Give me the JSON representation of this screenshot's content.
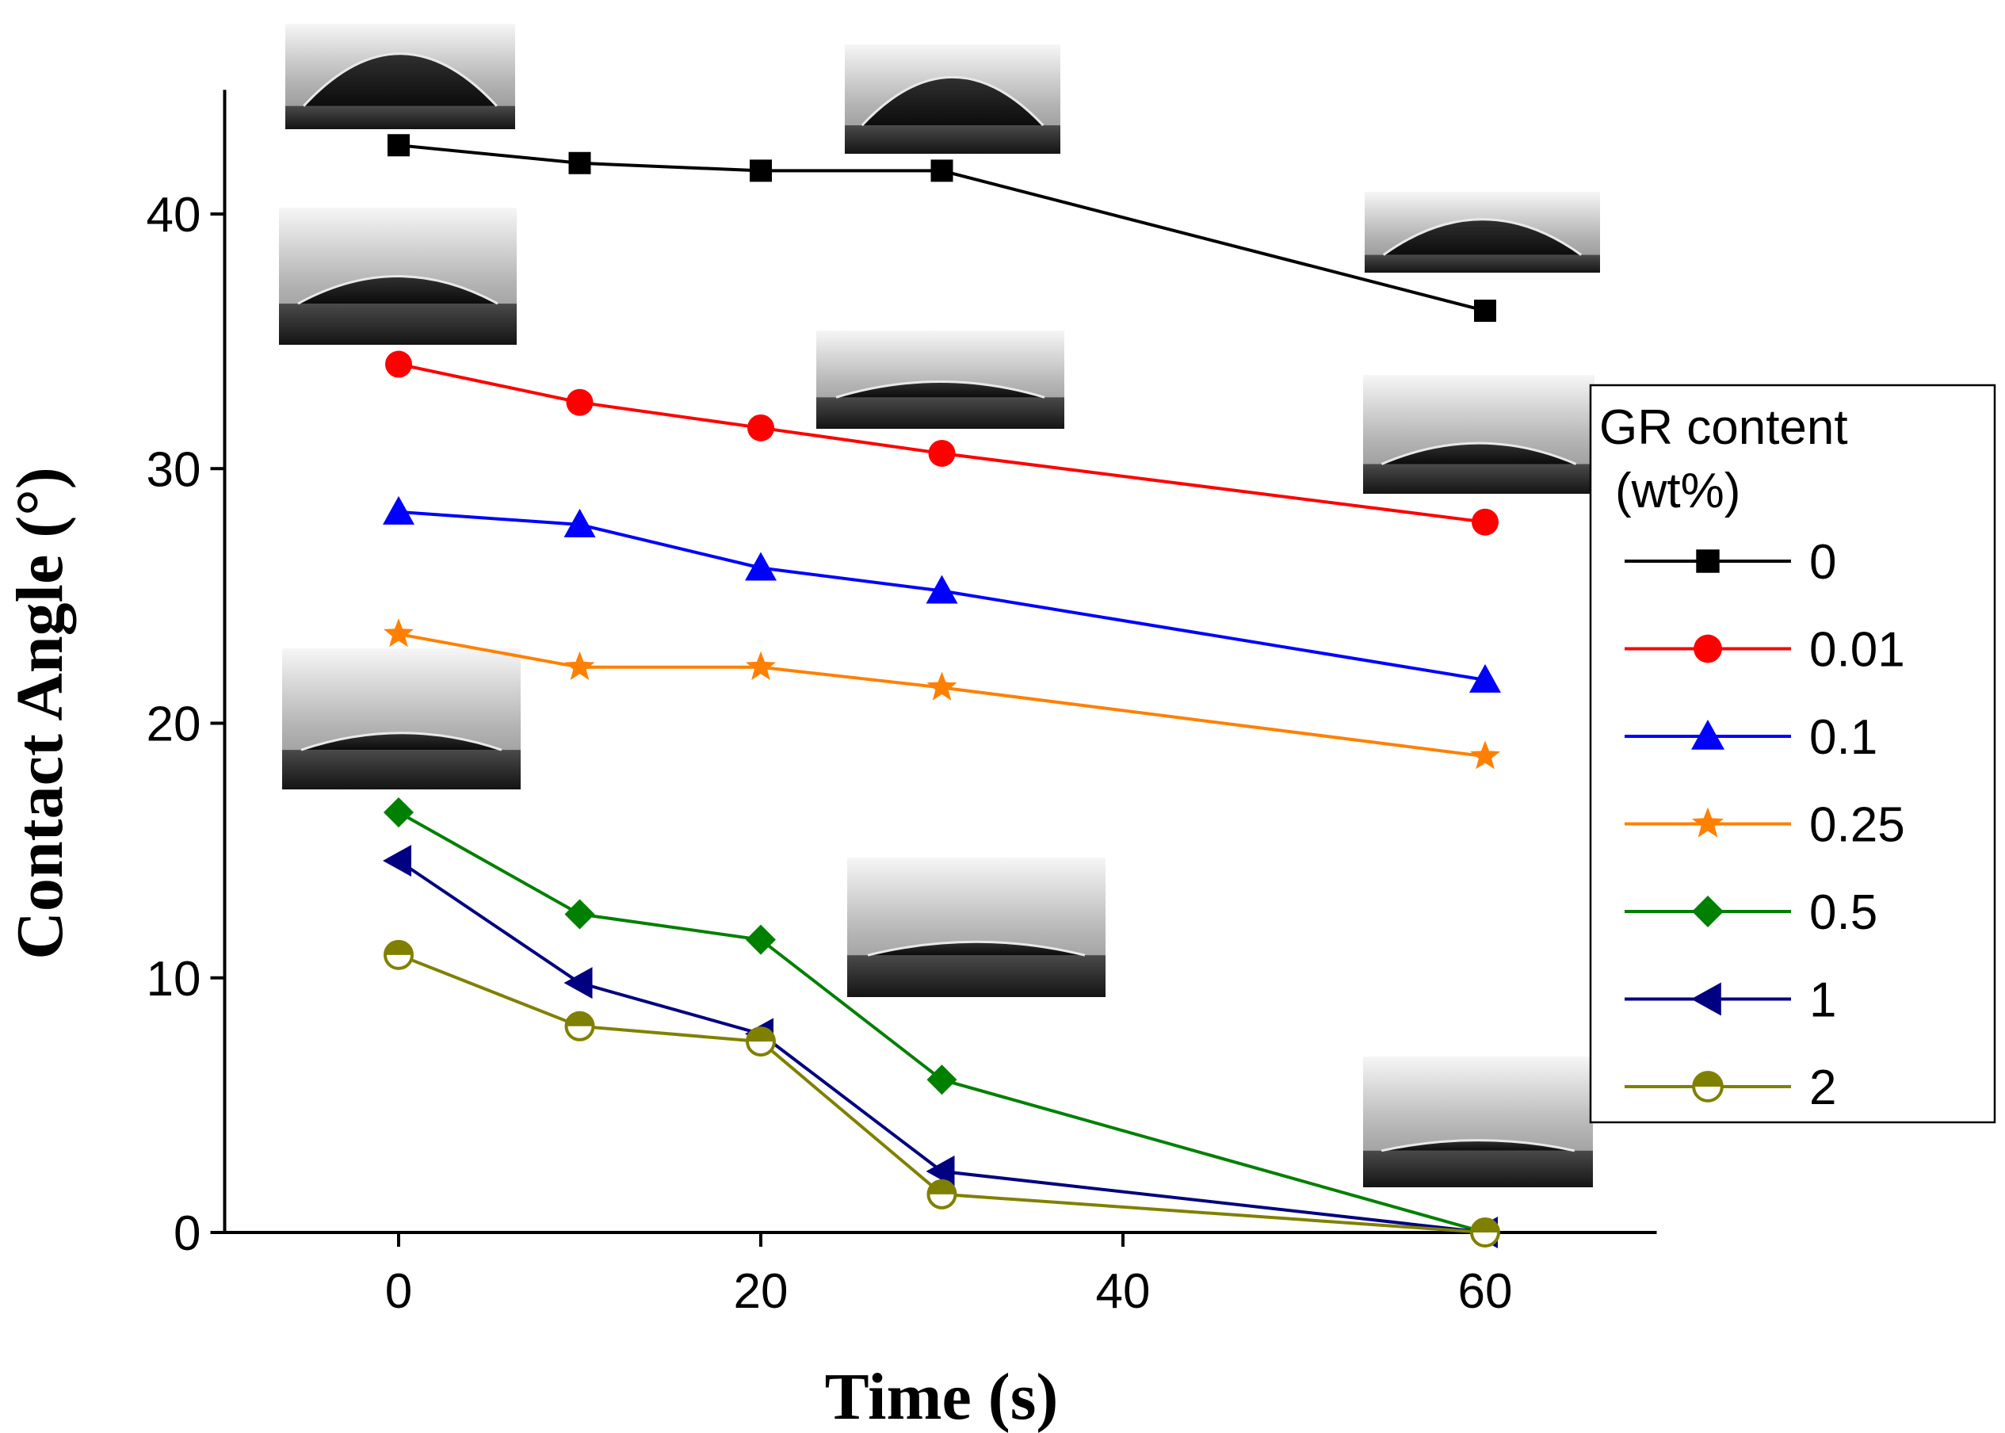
{
  "chart_data": {
    "type": "line",
    "title": "",
    "xlabel": "Time (s)",
    "ylabel": "Contact Angle (°)",
    "xlim": [
      -10,
      70
    ],
    "ylim": [
      0,
      45
    ],
    "x": [
      0,
      10,
      20,
      30,
      60
    ],
    "xticks": [
      0,
      20,
      40,
      60
    ],
    "yticks": [
      0,
      10,
      20,
      30,
      40
    ],
    "xtick_labels": [
      "0",
      "20",
      "40",
      "60"
    ],
    "ytick_labels": [
      "0",
      "10",
      "20",
      "30",
      "40"
    ],
    "grid": false,
    "legend": {
      "title_line1": "GR content",
      "title_line2": "(wt%)",
      "placement": "right"
    },
    "series": [
      {
        "name": "0",
        "color": "#000000",
        "marker": "square",
        "values": [
          42.7,
          42.0,
          41.7,
          41.7,
          36.2
        ]
      },
      {
        "name": "0.01",
        "color": "#ff0000",
        "marker": "circle",
        "values": [
          34.1,
          32.6,
          31.6,
          30.6,
          27.9
        ]
      },
      {
        "name": "0.1",
        "color": "#0000ff",
        "marker": "triangle-up",
        "values": [
          28.3,
          27.8,
          26.1,
          25.2,
          21.7
        ]
      },
      {
        "name": "0.25",
        "color": "#ff8000",
        "marker": "star",
        "values": [
          23.5,
          22.2,
          22.2,
          21.4,
          18.7
        ]
      },
      {
        "name": "0.5",
        "color": "#008000",
        "marker": "diamond",
        "values": [
          16.5,
          12.5,
          11.5,
          6.0,
          0.0
        ]
      },
      {
        "name": "1",
        "color": "#000080",
        "marker": "triangle-left",
        "values": [
          14.6,
          9.8,
          7.8,
          2.4,
          0.0
        ]
      },
      {
        "name": "2",
        "color": "#808000",
        "marker": "half-circle",
        "values": [
          10.9,
          8.1,
          7.5,
          1.5,
          0.0
        ]
      }
    ],
    "annotations": [
      {
        "type": "droplet-photo",
        "series": "0",
        "x": 0
      },
      {
        "type": "droplet-photo",
        "series": "0",
        "x": 30
      },
      {
        "type": "droplet-photo",
        "series": "0",
        "x": 60
      },
      {
        "type": "droplet-photo",
        "series": "0.01",
        "x": 0
      },
      {
        "type": "droplet-photo",
        "series": "0.01",
        "x": 30
      },
      {
        "type": "droplet-photo",
        "series": "0.01",
        "x": 60
      },
      {
        "type": "droplet-photo",
        "series": "0.5",
        "x": 0
      },
      {
        "type": "droplet-photo",
        "series": "0.5",
        "x": 30
      },
      {
        "type": "droplet-photo",
        "series": "0.5",
        "x": 60
      }
    ]
  }
}
